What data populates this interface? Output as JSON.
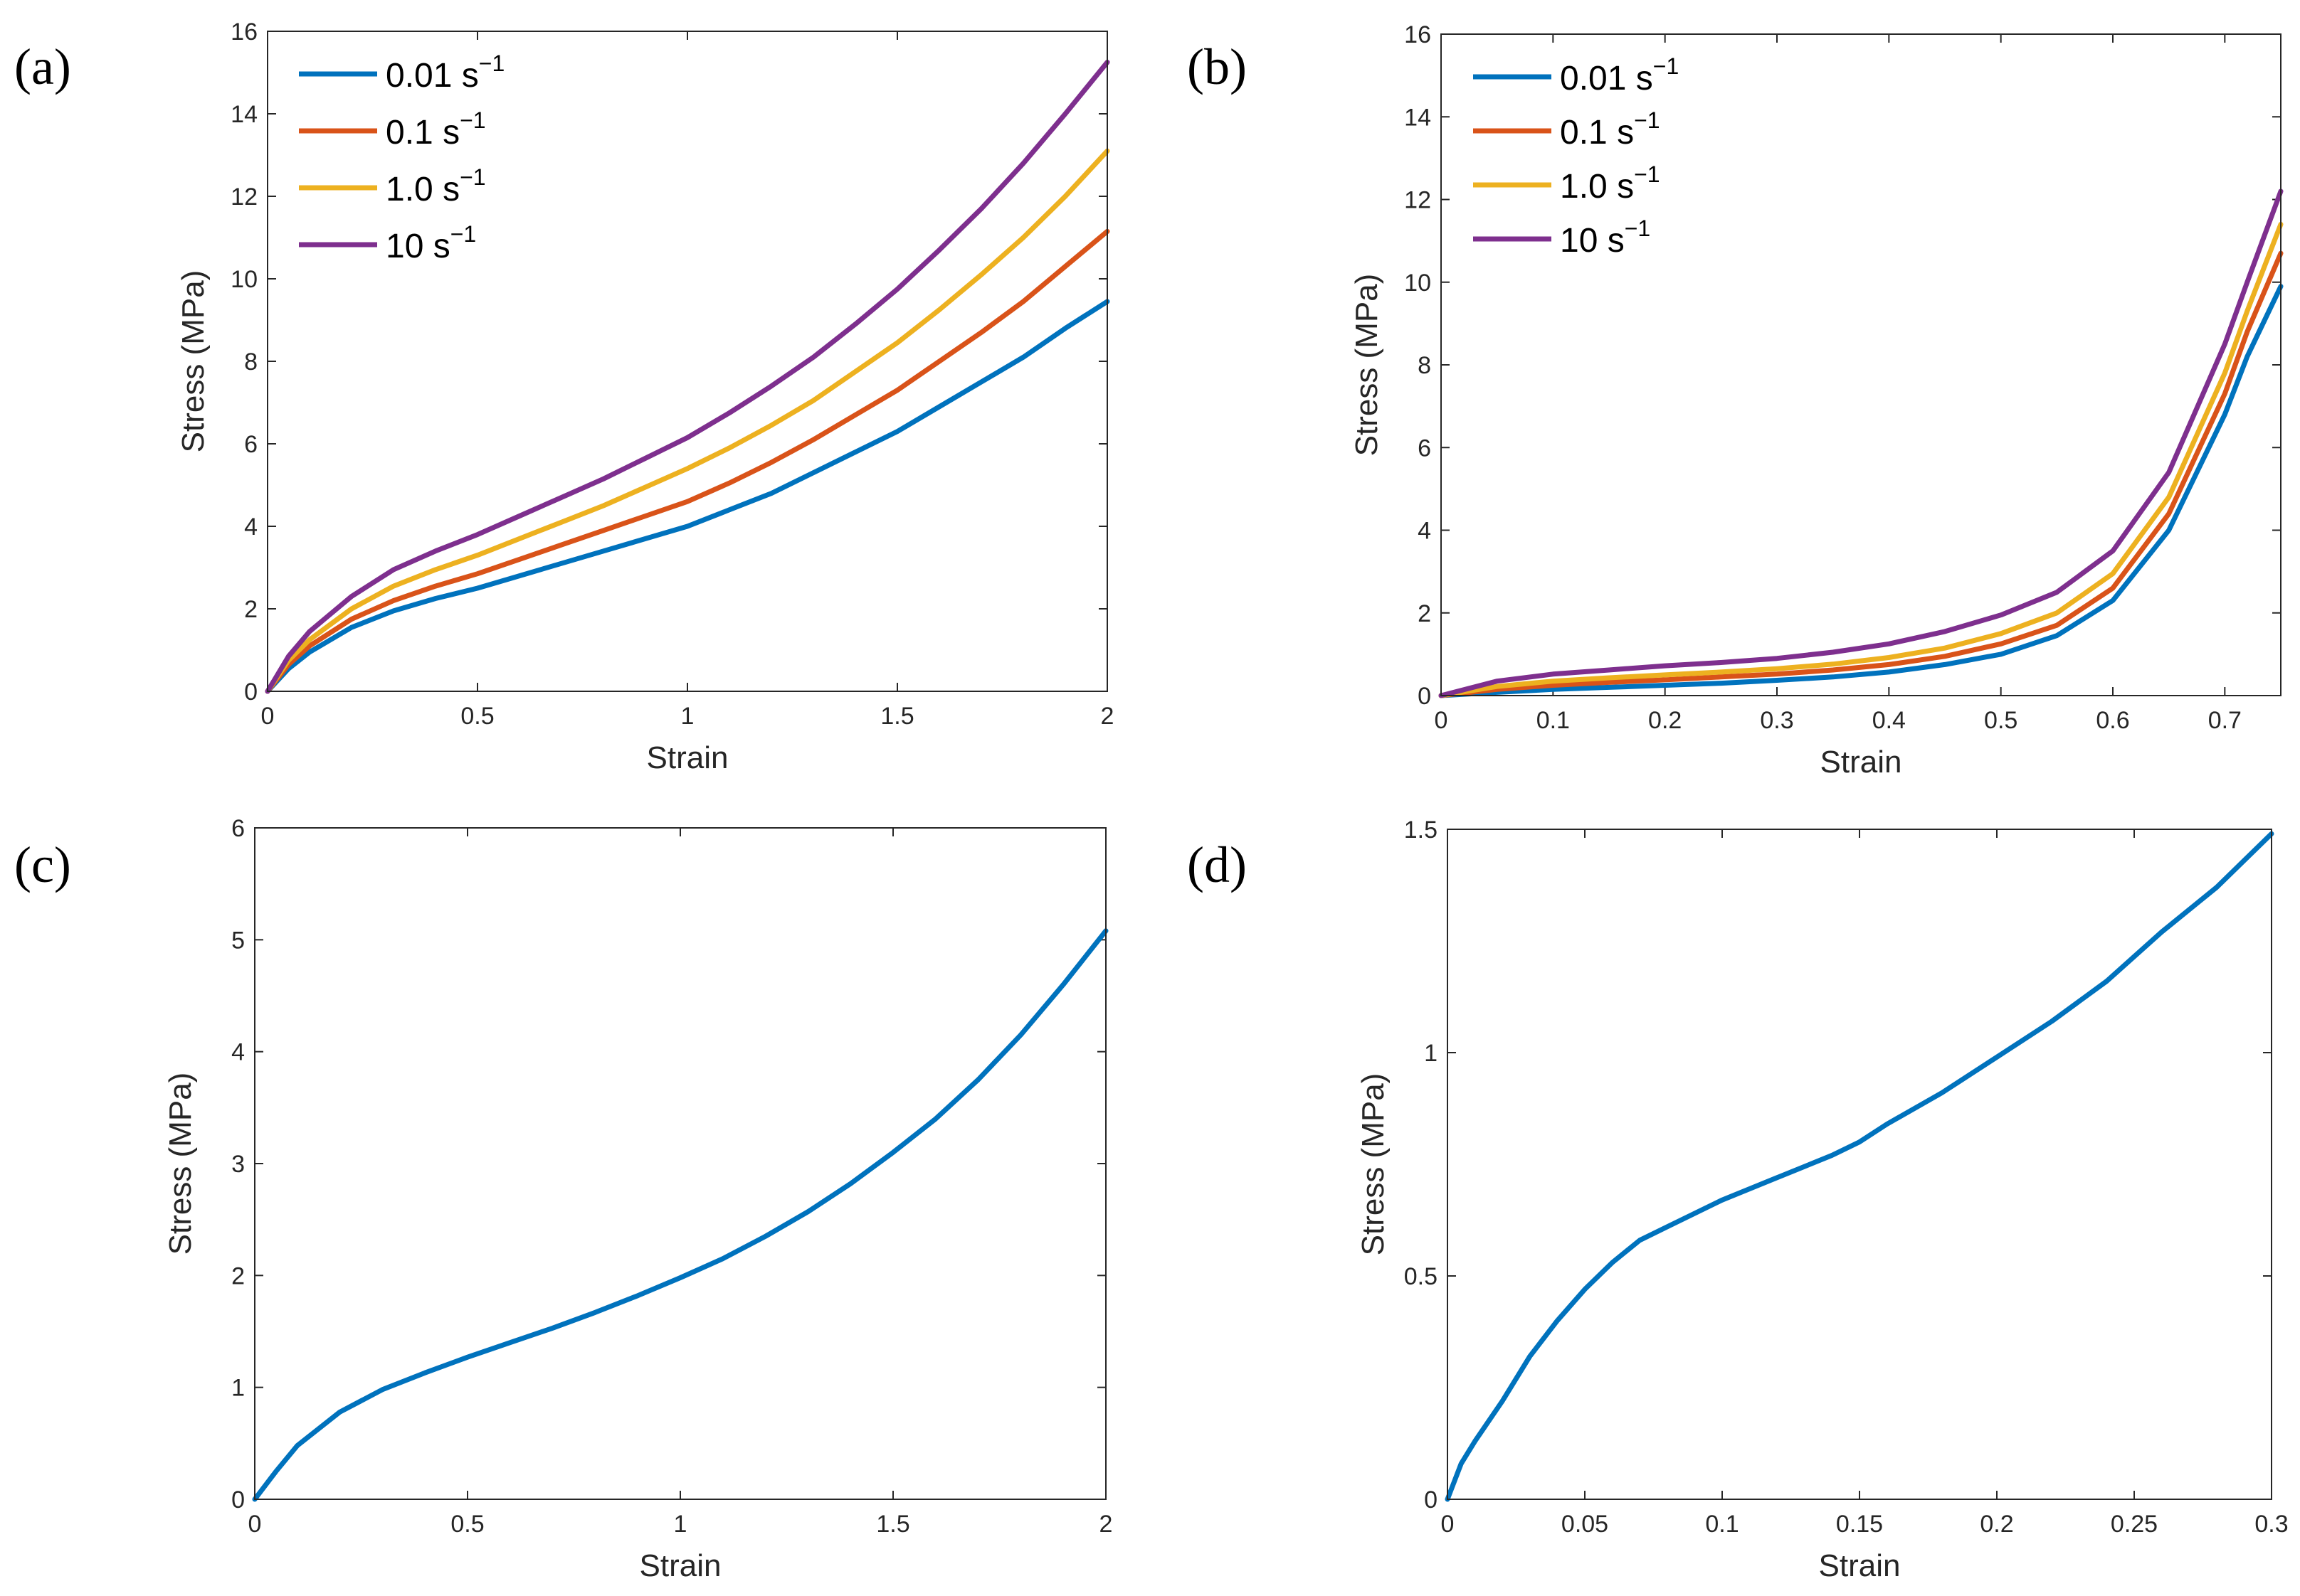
{
  "chart_data": [
    {
      "panel": "(a)",
      "type": "line",
      "xlabel": "Strain",
      "ylabel": "Stress (MPa)",
      "xlim": [
        0,
        2
      ],
      "ylim": [
        0,
        16
      ],
      "xticks": [
        0,
        0.5,
        1,
        1.5,
        2
      ],
      "xtick_labels": [
        "0",
        "0.5",
        "1",
        "1.5",
        "2"
      ],
      "yticks": [
        0,
        2,
        4,
        6,
        8,
        10,
        12,
        14,
        16
      ],
      "ytick_labels": [
        "0",
        "2",
        "4",
        "6",
        "8",
        "10",
        "12",
        "14",
        "16"
      ],
      "legend_position": "top-left",
      "x": [
        0,
        0.05,
        0.1,
        0.2,
        0.3,
        0.4,
        0.5,
        0.6,
        0.7,
        0.8,
        0.9,
        1.0,
        1.1,
        1.2,
        1.3,
        1.4,
        1.5,
        1.6,
        1.7,
        1.8,
        1.9,
        2.0
      ],
      "series": [
        {
          "name": "0.01",
          "unit": "s",
          "exp": "−1",
          "color": "#0072BD",
          "values": [
            0,
            0.55,
            0.95,
            1.55,
            1.95,
            2.25,
            2.5,
            2.8,
            3.1,
            3.4,
            3.7,
            4.0,
            4.4,
            4.8,
            5.3,
            5.8,
            6.3,
            6.9,
            7.5,
            8.1,
            8.8,
            9.45
          ]
        },
        {
          "name": "0.1",
          "unit": "s",
          "exp": "−1",
          "color": "#D95319",
          "values": [
            0,
            0.65,
            1.1,
            1.75,
            2.2,
            2.55,
            2.85,
            3.2,
            3.55,
            3.9,
            4.25,
            4.6,
            5.05,
            5.55,
            6.1,
            6.7,
            7.3,
            8.0,
            8.7,
            9.45,
            10.3,
            11.15
          ]
        },
        {
          "name": "1.0",
          "unit": "s",
          "exp": "−1",
          "color": "#EDB120",
          "values": [
            0,
            0.75,
            1.25,
            2.0,
            2.55,
            2.95,
            3.3,
            3.7,
            4.1,
            4.5,
            4.95,
            5.4,
            5.9,
            6.45,
            7.05,
            7.75,
            8.45,
            9.25,
            10.1,
            11.0,
            12.0,
            13.1
          ]
        },
        {
          "name": "10",
          "unit": "s",
          "exp": "−1",
          "color": "#7E2F8E",
          "values": [
            0,
            0.85,
            1.45,
            2.3,
            2.95,
            3.4,
            3.8,
            4.25,
            4.7,
            5.15,
            5.65,
            6.15,
            6.75,
            7.4,
            8.1,
            8.9,
            9.75,
            10.7,
            11.7,
            12.8,
            14.0,
            15.25
          ]
        }
      ]
    },
    {
      "panel": "(b)",
      "type": "line",
      "xlabel": "Strain",
      "ylabel": "Stress (MPa)",
      "xlim": [
        0,
        0.75
      ],
      "ylim": [
        0,
        16
      ],
      "xticks": [
        0,
        0.1,
        0.2,
        0.3,
        0.4,
        0.5,
        0.6,
        0.7
      ],
      "xtick_labels": [
        "0",
        "0.1",
        "0.2",
        "0.3",
        "0.4",
        "0.5",
        "0.6",
        "0.7"
      ],
      "yticks": [
        0,
        2,
        4,
        6,
        8,
        10,
        12,
        14,
        16
      ],
      "ytick_labels": [
        "0",
        "2",
        "4",
        "6",
        "8",
        "10",
        "12",
        "14",
        "16"
      ],
      "legend_position": "top-left",
      "x": [
        0,
        0.05,
        0.1,
        0.15,
        0.2,
        0.25,
        0.3,
        0.35,
        0.4,
        0.45,
        0.5,
        0.55,
        0.6,
        0.65,
        0.7,
        0.72,
        0.75
      ],
      "series": [
        {
          "name": "0.01",
          "unit": "s",
          "exp": "−1",
          "color": "#0072BD",
          "values": [
            0,
            0.08,
            0.15,
            0.2,
            0.25,
            0.3,
            0.37,
            0.45,
            0.57,
            0.75,
            1.0,
            1.45,
            2.3,
            4.0,
            6.8,
            8.2,
            9.9
          ]
        },
        {
          "name": "0.1",
          "unit": "s",
          "exp": "−1",
          "color": "#D95319",
          "values": [
            0,
            0.15,
            0.25,
            0.32,
            0.38,
            0.45,
            0.52,
            0.62,
            0.75,
            0.95,
            1.25,
            1.7,
            2.6,
            4.4,
            7.3,
            8.8,
            10.7
          ]
        },
        {
          "name": "1.0",
          "unit": "s",
          "exp": "−1",
          "color": "#EDB120",
          "values": [
            0,
            0.22,
            0.35,
            0.43,
            0.5,
            0.57,
            0.65,
            0.76,
            0.92,
            1.15,
            1.5,
            2.0,
            2.95,
            4.8,
            7.8,
            9.3,
            11.4
          ]
        },
        {
          "name": "10",
          "unit": "s",
          "exp": "−1",
          "color": "#7E2F8E",
          "values": [
            0,
            0.35,
            0.52,
            0.62,
            0.72,
            0.8,
            0.9,
            1.05,
            1.25,
            1.55,
            1.95,
            2.5,
            3.5,
            5.4,
            8.5,
            10.0,
            12.2
          ]
        }
      ]
    },
    {
      "panel": "(c)",
      "type": "line",
      "xlabel": "Strain",
      "ylabel": "Stress (MPa)",
      "xlim": [
        0,
        2
      ],
      "ylim": [
        0,
        6
      ],
      "xticks": [
        0,
        0.5,
        1,
        1.5,
        2
      ],
      "xtick_labels": [
        "0",
        "0.5",
        "1",
        "1.5",
        "2"
      ],
      "yticks": [
        0,
        1,
        2,
        3,
        4,
        5,
        6
      ],
      "ytick_labels": [
        "0",
        "1",
        "2",
        "3",
        "4",
        "5",
        "6"
      ],
      "x": [
        0,
        0.05,
        0.1,
        0.2,
        0.3,
        0.4,
        0.5,
        0.6,
        0.7,
        0.8,
        0.9,
        1.0,
        1.1,
        1.2,
        1.3,
        1.4,
        1.5,
        1.6,
        1.7,
        1.8,
        1.9,
        2.0
      ],
      "series": [
        {
          "name": "",
          "color": "#0072BD",
          "values": [
            0,
            0.25,
            0.48,
            0.78,
            0.98,
            1.13,
            1.27,
            1.4,
            1.53,
            1.67,
            1.82,
            1.98,
            2.15,
            2.35,
            2.57,
            2.82,
            3.1,
            3.4,
            3.75,
            4.15,
            4.6,
            5.08
          ]
        }
      ]
    },
    {
      "panel": "(d)",
      "type": "line",
      "xlabel": "Strain",
      "ylabel": "Stress (MPa)",
      "xlim": [
        0,
        0.3
      ],
      "ylim": [
        0,
        1.5
      ],
      "xticks": [
        0,
        0.05,
        0.1,
        0.15,
        0.2,
        0.25,
        0.3
      ],
      "xtick_labels": [
        "0",
        "0.05",
        "0.1",
        "0.15",
        "0.2",
        "0.25",
        "0.3"
      ],
      "yticks": [
        0,
        0.5,
        1,
        1.5
      ],
      "ytick_labels": [
        "0",
        "0.5",
        "1",
        "1.5"
      ],
      "x": [
        0,
        0.005,
        0.01,
        0.02,
        0.03,
        0.04,
        0.05,
        0.06,
        0.07,
        0.08,
        0.1,
        0.12,
        0.14,
        0.15,
        0.16,
        0.18,
        0.2,
        0.22,
        0.24,
        0.26,
        0.28,
        0.3
      ],
      "series": [
        {
          "name": "",
          "color": "#0072BD",
          "values": [
            0,
            0.08,
            0.13,
            0.22,
            0.32,
            0.4,
            0.47,
            0.53,
            0.58,
            0.61,
            0.67,
            0.72,
            0.77,
            0.8,
            0.84,
            0.91,
            0.99,
            1.07,
            1.16,
            1.27,
            1.37,
            1.49
          ]
        }
      ]
    }
  ]
}
